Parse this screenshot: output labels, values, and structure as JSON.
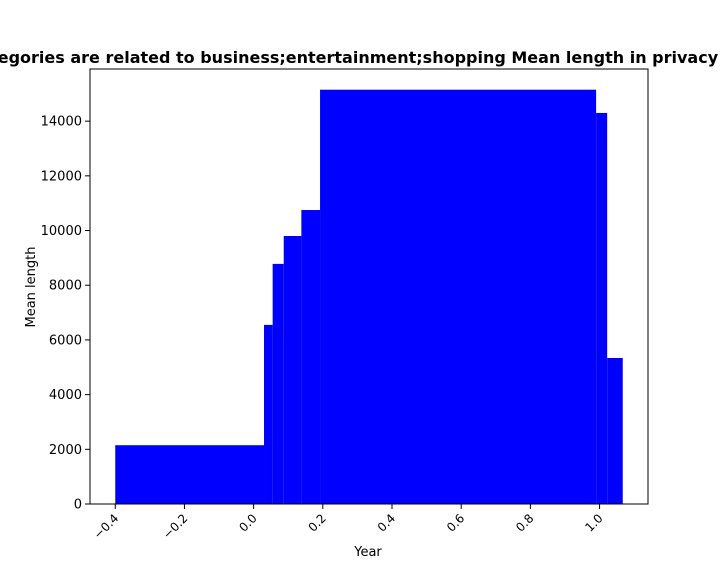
{
  "chart_data": {
    "type": "bar",
    "title": "Categories are related to business;entertainment;shopping Mean length in privacy policies",
    "xlabel": "Year",
    "ylabel": "Mean length",
    "bars": [
      {
        "x0": -0.4,
        "x1": 0.03,
        "value": 2150
      },
      {
        "x0": 0.03,
        "x1": 0.055,
        "value": 6550
      },
      {
        "x0": 0.055,
        "x1": 0.087,
        "value": 8780
      },
      {
        "x0": 0.087,
        "x1": 0.138,
        "value": 9800
      },
      {
        "x0": 0.138,
        "x1": 0.192,
        "value": 10750
      },
      {
        "x0": 0.192,
        "x1": 0.99,
        "value": 15150
      },
      {
        "x0": 0.99,
        "x1": 1.022,
        "value": 14300
      },
      {
        "x0": 1.022,
        "x1": 1.067,
        "value": 5340
      }
    ],
    "xlim": [
      -0.473,
      1.14
    ],
    "ylim": [
      0,
      15907
    ],
    "xticks": [
      -0.4,
      -0.2,
      0.0,
      0.2,
      0.4,
      0.6,
      0.8,
      1.0
    ],
    "xtick_labels": [
      "−0.4",
      "−0.2",
      "0.0",
      "0.2",
      "0.4",
      "0.6",
      "0.8",
      "1.0"
    ],
    "yticks": [
      0,
      2000,
      4000,
      6000,
      8000,
      10000,
      12000,
      14000
    ],
    "ytick_labels": [
      "0",
      "2000",
      "4000",
      "6000",
      "8000",
      "10000",
      "12000",
      "14000"
    ],
    "bar_color": "#0000ff",
    "grid": false,
    "legend": false
  }
}
